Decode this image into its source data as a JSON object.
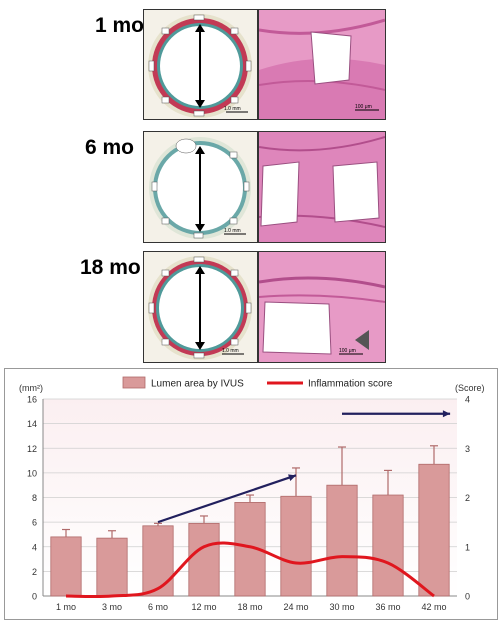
{
  "panels": [
    {
      "label": "1 mo",
      "scale_left": "1.0 mm",
      "scale_right": "100 μm"
    },
    {
      "label": "6 mo",
      "scale_left": "1.0 mm",
      "scale_right": ""
    },
    {
      "label": "18 mo",
      "scale_left": "1.0 mm",
      "scale_right": "100 μm"
    }
  ],
  "colors": {
    "bar_fill": "#d99a9a",
    "bar_stroke": "#b06a6a",
    "line": "#e0161e",
    "arrow": "#22205e",
    "plot_bg_top": "#fbeff1",
    "plot_bg_bottom": "#ffffff",
    "stent_red": "#c23a55",
    "stent_teal": "#4f9a9a",
    "tissue_pink": "#d66fa8"
  },
  "chart_data": {
    "type": "bar+line",
    "categories": [
      "1 mo",
      "3 mo",
      "6 mo",
      "12 mo",
      "18 mo",
      "24 mo",
      "30 mo",
      "36 mo",
      "42 mo"
    ],
    "series": [
      {
        "name": "Lumen area by IVUS",
        "type": "bar",
        "axis": "left",
        "values": [
          4.8,
          4.7,
          5.7,
          5.9,
          7.6,
          8.1,
          9.0,
          8.2,
          10.7
        ],
        "error": [
          0.6,
          0.6,
          0.2,
          0.6,
          0.6,
          2.3,
          3.1,
          2.0,
          1.5
        ]
      },
      {
        "name": "Inflammation score",
        "type": "line",
        "axis": "right",
        "values": [
          0,
          0,
          0.15,
          1.0,
          1.0,
          0.67,
          0.8,
          0.67,
          0
        ]
      }
    ],
    "left_axis": {
      "label": "(mm²)",
      "min": 0,
      "max": 16,
      "ticks": [
        "0",
        "2",
        "4",
        "6",
        "8",
        "10",
        "12",
        "14",
        "16"
      ]
    },
    "right_axis": {
      "label": "(Score)",
      "min": 0,
      "max": 4,
      "ticks": [
        "0",
        "1",
        "2",
        "3",
        "4"
      ]
    },
    "legend_position": "top-center",
    "grid": true,
    "trend_arrows": [
      {
        "from": {
          "category": "6 mo",
          "y": 6.0
        },
        "to": {
          "category": "24 mo",
          "y": 9.8
        }
      },
      {
        "from": {
          "category": "30 mo",
          "y": 14.8
        },
        "to": {
          "category": "42 mo",
          "y": 14.8
        }
      }
    ]
  }
}
